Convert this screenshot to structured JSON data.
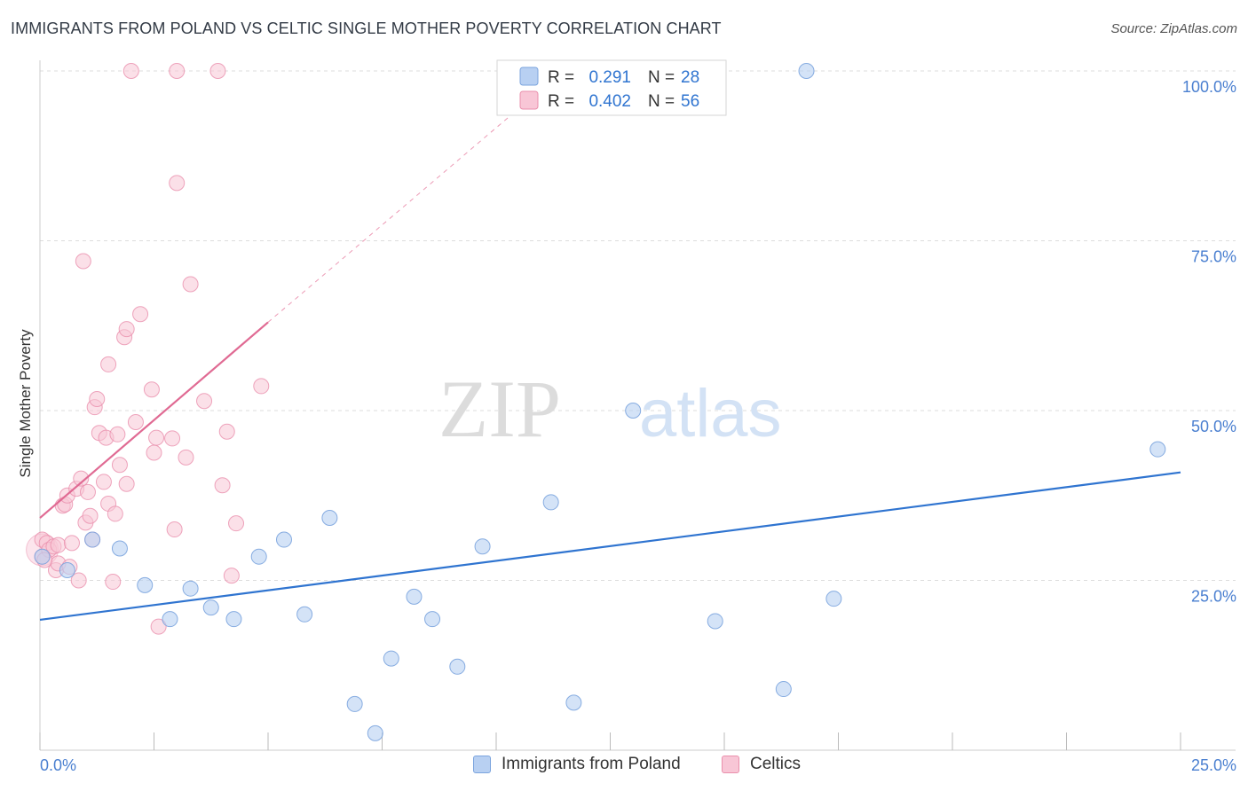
{
  "title": "IMMIGRANTS FROM POLAND VS CELTIC SINGLE MOTHER POVERTY CORRELATION CHART",
  "source": "Source: ZipAtlas.com",
  "watermark": {
    "zip": "ZIP",
    "atlas": "atlas"
  },
  "legend_top": [
    {
      "r_label": "R =",
      "r_value": "0.291",
      "n_label": "N =",
      "n_value": "28"
    },
    {
      "r_label": "R =",
      "r_value": "0.402",
      "n_label": "N =",
      "n_value": "56"
    }
  ],
  "legend_bottom": [
    {
      "label": "Immigrants from Poland"
    },
    {
      "label": "Celtics"
    }
  ],
  "colors": {
    "blue_fill": "#b8d0f2",
    "blue_stroke": "#7ba4de",
    "blue_line": "#2f74d0",
    "pink_fill": "#f8c6d6",
    "pink_stroke": "#ea8fac",
    "pink_line": "#e06a93",
    "tick_label": "#4a7fd0",
    "grid": "#dddddd"
  },
  "chart_data": {
    "type": "scatter",
    "title": "IMMIGRANTS FROM POLAND VS CELTIC SINGLE MOTHER POVERTY CORRELATION CHART",
    "xlabel": "",
    "ylabel": "Single Mother Poverty",
    "xlim": [
      0,
      25
    ],
    "ylim": [
      0,
      100
    ],
    "x_tick_labels": [
      "0.0%",
      "25.0%"
    ],
    "y_ticks": [
      25,
      50,
      75,
      100
    ],
    "y_tick_labels": [
      "25.0%",
      "50.0%",
      "75.0%",
      "100.0%"
    ],
    "grid": true,
    "series": [
      {
        "name": "Immigrants from Poland",
        "color": "blue",
        "points": [
          [
            0.05,
            28.5
          ],
          [
            0.6,
            26.5
          ],
          [
            1.15,
            31.0
          ],
          [
            1.75,
            29.7
          ],
          [
            2.3,
            24.3
          ],
          [
            2.85,
            19.3
          ],
          [
            3.3,
            23.8
          ],
          [
            3.75,
            21.0
          ],
          [
            4.25,
            19.3
          ],
          [
            4.8,
            28.5
          ],
          [
            5.35,
            31.0
          ],
          [
            5.8,
            20.0
          ],
          [
            6.35,
            34.2
          ],
          [
            6.9,
            6.8
          ],
          [
            7.35,
            2.5
          ],
          [
            7.7,
            13.5
          ],
          [
            8.2,
            22.6
          ],
          [
            8.6,
            19.3
          ],
          [
            9.15,
            12.3
          ],
          [
            9.7,
            30.0
          ],
          [
            11.2,
            36.5
          ],
          [
            11.7,
            7.0
          ],
          [
            13.0,
            50.0
          ],
          [
            14.8,
            19.0
          ],
          [
            16.3,
            9.0
          ],
          [
            16.8,
            100.0
          ],
          [
            17.4,
            22.3
          ],
          [
            24.5,
            44.3
          ]
        ],
        "trend": {
          "x": [
            0,
            25
          ],
          "y": [
            19.2,
            40.9
          ]
        }
      },
      {
        "name": "Celtics",
        "color": "pink",
        "points": [
          [
            0.05,
            28.5
          ],
          [
            0.05,
            31.0
          ],
          [
            0.15,
            30.5
          ],
          [
            0.2,
            29.5
          ],
          [
            0.3,
            30.0
          ],
          [
            0.35,
            26.5
          ],
          [
            0.4,
            30.2
          ],
          [
            0.4,
            27.5
          ],
          [
            0.5,
            36.0
          ],
          [
            0.55,
            36.2
          ],
          [
            0.6,
            37.5
          ],
          [
            0.65,
            27.0
          ],
          [
            0.7,
            30.5
          ],
          [
            0.8,
            38.5
          ],
          [
            0.85,
            25.0
          ],
          [
            0.9,
            40.0
          ],
          [
            0.95,
            72.0
          ],
          [
            1.0,
            33.5
          ],
          [
            1.05,
            38.0
          ],
          [
            1.1,
            34.5
          ],
          [
            1.15,
            31.0
          ],
          [
            1.2,
            50.5
          ],
          [
            1.25,
            51.7
          ],
          [
            1.3,
            46.7
          ],
          [
            1.4,
            39.5
          ],
          [
            1.45,
            46.0
          ],
          [
            1.5,
            36.3
          ],
          [
            1.5,
            56.8
          ],
          [
            1.6,
            24.8
          ],
          [
            1.65,
            34.8
          ],
          [
            1.7,
            46.5
          ],
          [
            1.75,
            42.0
          ],
          [
            1.85,
            60.8
          ],
          [
            1.9,
            62.0
          ],
          [
            1.9,
            39.2
          ],
          [
            2.0,
            100.0
          ],
          [
            2.1,
            48.3
          ],
          [
            2.2,
            64.2
          ],
          [
            2.45,
            53.1
          ],
          [
            2.5,
            43.8
          ],
          [
            2.55,
            46.0
          ],
          [
            2.6,
            18.2
          ],
          [
            2.9,
            45.9
          ],
          [
            2.95,
            32.5
          ],
          [
            3.0,
            83.5
          ],
          [
            3.0,
            100.0
          ],
          [
            3.2,
            43.1
          ],
          [
            3.3,
            68.6
          ],
          [
            3.6,
            51.4
          ],
          [
            3.9,
            100.0
          ],
          [
            4.0,
            39.0
          ],
          [
            4.1,
            46.9
          ],
          [
            4.2,
            25.7
          ],
          [
            4.3,
            33.4
          ],
          [
            4.85,
            53.6
          ],
          [
            0.1,
            28.0
          ]
        ],
        "trend": {
          "x": [
            0,
            5
          ],
          "y": [
            34.2,
            63.0
          ]
        },
        "trend_extension": {
          "x": [
            5,
            10.5
          ],
          "y": [
            63.0,
            94.5
          ]
        }
      }
    ]
  }
}
